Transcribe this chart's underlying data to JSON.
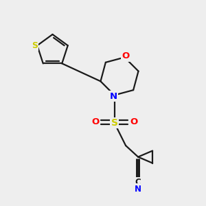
{
  "bg_color": "#eeeeee",
  "bond_color": "#1a1a1a",
  "S_color": "#cccc00",
  "O_color": "#ff0000",
  "N_color": "#0000ff",
  "C_color": "#1a1a1a",
  "figsize": [
    3.0,
    3.0
  ],
  "dpi": 100,
  "xlim": [
    0,
    10
  ],
  "ylim": [
    0,
    10
  ]
}
